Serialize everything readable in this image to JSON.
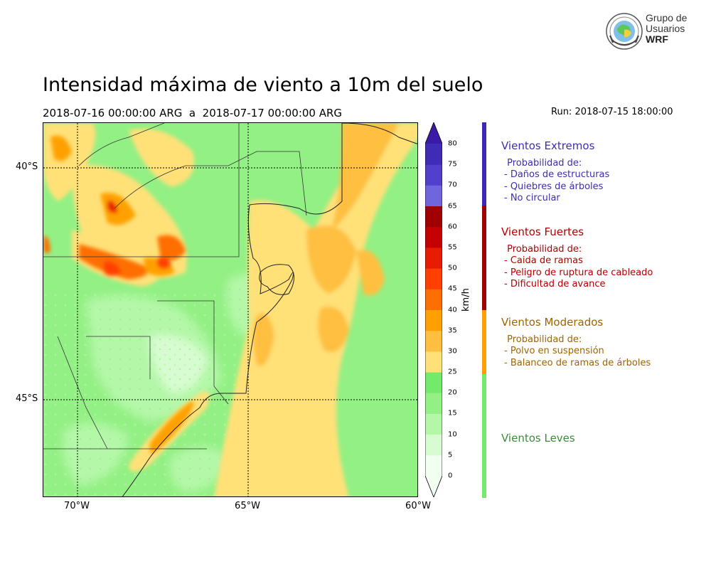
{
  "title": "Intensidad máxima de viento a 10m del suelo",
  "subtitle": "2018-07-16 00:00:00 ARG  a  2018-07-17 00:00:00 ARG",
  "run_label": "Run: 2018-07-15 18:00:00",
  "logo": {
    "line1": "Grupo de",
    "line2": "Usuarios",
    "line3": "WRF"
  },
  "map": {
    "lat_labels": [
      "40°S",
      "45°S"
    ],
    "lon_labels": [
      "70°W",
      "65°W",
      "60°W"
    ]
  },
  "colorbar": {
    "unit": "km/h",
    "ticks": [
      "80",
      "75",
      "70",
      "65",
      "60",
      "55",
      "50",
      "45",
      "40",
      "35",
      "30",
      "25",
      "20",
      "15",
      "10",
      "5",
      "0"
    ],
    "colors": {
      "0": "#f0fff0",
      "5": "#d8fcd2",
      "10": "#b4f7a8",
      "15": "#93f084",
      "20": "#74ea6c",
      "25": "#ffe178",
      "30": "#ffbf40",
      "35": "#ffa000",
      "40": "#ff6e00",
      "45": "#ff4000",
      "50": "#e81c00",
      "55": "#c40000",
      "60": "#a00000",
      "65": "#7065dd",
      "70": "#5240cc",
      "75": "#3f2bb5",
      "80": "#3a1ba8"
    }
  },
  "categories": [
    {
      "title": "Vientos Extremos",
      "color": "#3c2eb4",
      "bar": "#3c28b4",
      "desc": [
        " Probabilidad de:",
        "- Daños de estructuras",
        "- Quiebres de árboles",
        "- No circular"
      ]
    },
    {
      "title": "Vientos Fuertes",
      "color": "#b40000",
      "bar": "#a00000",
      "desc": [
        " Probabilidad de:",
        "- Caida de ramas",
        "- Peligro de ruptura de cableado",
        "- Dificultad de avance"
      ]
    },
    {
      "title": "Vientos Moderados",
      "color": "#a06400",
      "bar": "#ffa000",
      "desc": [
        " Probabilidad de:",
        "- Polvo en suspensión",
        "- Balanceo de ramas de árboles"
      ]
    },
    {
      "title": "Vientos Leves",
      "color": "#3c8c3c",
      "bar": "#74ea6c",
      "desc": []
    }
  ]
}
